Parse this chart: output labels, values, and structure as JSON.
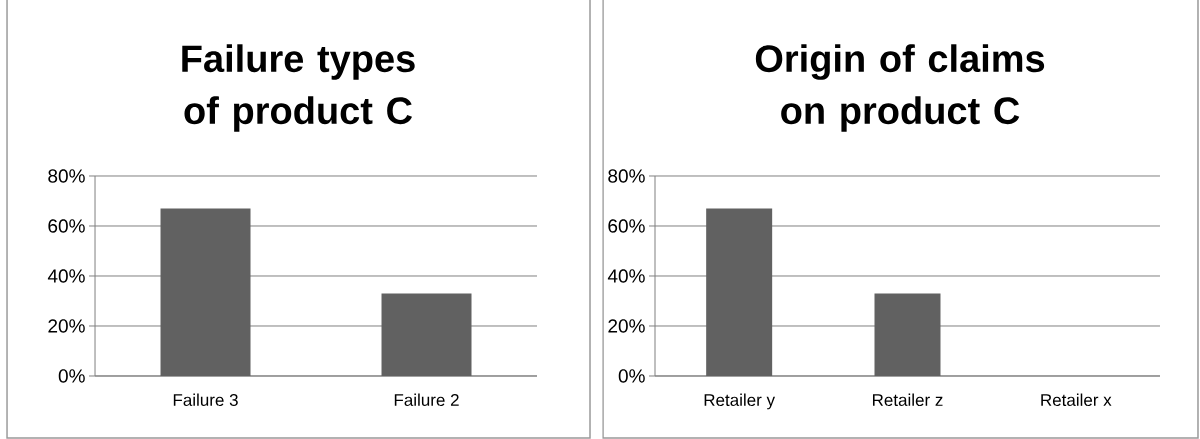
{
  "chart_data": [
    {
      "type": "bar",
      "title": "Failure types of product C",
      "categories": [
        "Failure 3",
        "Failure 2"
      ],
      "values": [
        67,
        33
      ],
      "color": "#616161",
      "ylim": [
        0,
        80
      ],
      "yticks": [
        {
          "value": 0,
          "label": "0%"
        },
        {
          "value": 20,
          "label": "20%"
        },
        {
          "value": 40,
          "label": "40%"
        },
        {
          "value": 60,
          "label": "60%"
        },
        {
          "value": 80,
          "label": "80%"
        }
      ],
      "grid": "y"
    },
    {
      "type": "bar",
      "title": "Origin of claims on product C",
      "categories": [
        "Retailer y",
        "Retailer z",
        "Retailer x"
      ],
      "values": [
        67,
        33,
        0
      ],
      "color": "#616161",
      "ylim": [
        0,
        80
      ],
      "yticks": [
        {
          "value": 0,
          "label": "0%"
        },
        {
          "value": 20,
          "label": "20%"
        },
        {
          "value": 40,
          "label": "40%"
        },
        {
          "value": 60,
          "label": "60%"
        },
        {
          "value": 80,
          "label": "80%"
        }
      ],
      "grid": "y"
    }
  ]
}
